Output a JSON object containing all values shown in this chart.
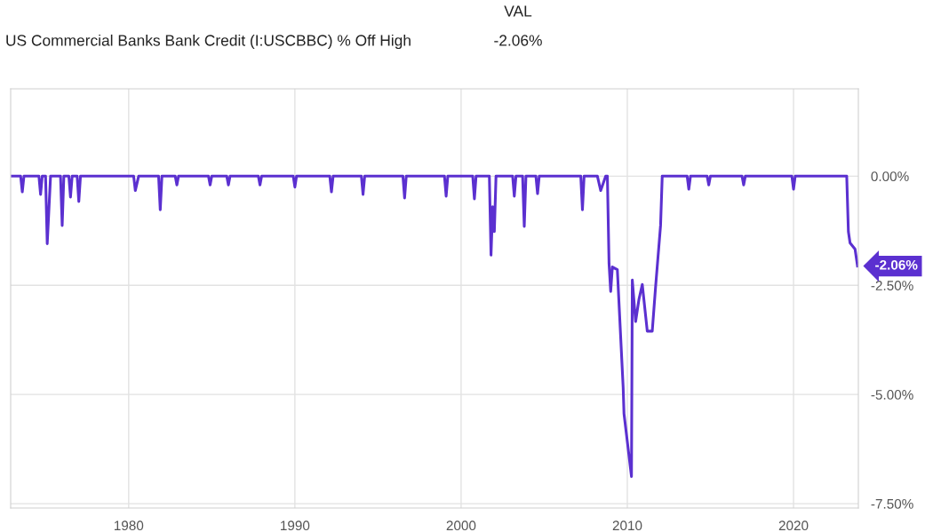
{
  "chart_data": {
    "type": "line",
    "title": "US Commercial Banks Bank Credit (I:USCBBC) % Off High",
    "annotations": [
      "VAL",
      "-2.06%",
      {
        "text": "-2.06%",
        "x": 2023.85,
        "y": -2.06
      }
    ],
    "series": [
      {
        "color": "#5b30d0",
        "x": [
          1972.9,
          1973.5,
          1973.6,
          1973.7,
          1974.6,
          1974.7,
          1974.8,
          1975.0,
          1975.1,
          1975.3,
          1975.9,
          1976.0,
          1976.1,
          1976.4,
          1976.5,
          1976.6,
          1976.9,
          1977.0,
          1977.1,
          1980.3,
          1980.4,
          1980.6,
          1981.8,
          1981.9,
          1982.0,
          1982.8,
          1982.9,
          1983.0,
          1984.8,
          1984.9,
          1985.0,
          1985.9,
          1986.0,
          1986.1,
          1987.8,
          1987.9,
          1988.0,
          1989.9,
          1990.0,
          1990.1,
          1992.1,
          1992.2,
          1992.3,
          1994.0,
          1994.1,
          1994.2,
          1996.5,
          1996.6,
          1996.7,
          1999.0,
          1999.1,
          1999.2,
          2000.7,
          2000.8,
          2000.9,
          2001.7,
          2001.8,
          2001.9,
          2002.0,
          2002.1,
          2002.3,
          2003.1,
          2003.2,
          2003.3,
          2003.7,
          2003.8,
          2003.9,
          2004.5,
          2004.6,
          2004.7,
          2007.2,
          2007.3,
          2007.4,
          2008.2,
          2008.4,
          2008.7,
          2008.8,
          2008.9,
          2009.0,
          2009.1,
          2009.4,
          2009.75,
          2009.8,
          2010.25,
          2010.3,
          2010.5,
          2010.7,
          2010.9,
          2011.2,
          2011.5,
          2011.7,
          2012.0,
          2012.1,
          2013.6,
          2013.7,
          2013.8,
          2014.8,
          2014.9,
          2015.0,
          2016.9,
          2017.0,
          2017.1,
          2019.9,
          2020.0,
          2020.1,
          2023.2,
          2023.3,
          2023.4,
          2023.7,
          2023.85
        ],
        "values": [
          0,
          0,
          -0.36,
          0,
          0,
          -0.42,
          0,
          0,
          -1.55,
          0,
          0,
          -1.13,
          0,
          0,
          -0.48,
          0,
          0,
          -0.58,
          0,
          0,
          -0.33,
          0,
          0,
          -0.77,
          0,
          0,
          -0.2,
          0,
          0,
          -0.2,
          0,
          0,
          -0.2,
          0,
          0,
          -0.2,
          0,
          0,
          -0.25,
          0,
          0,
          -0.36,
          0,
          0,
          -0.42,
          0,
          0,
          -0.5,
          0,
          0,
          -0.46,
          0,
          0,
          -0.52,
          0,
          0,
          -1.81,
          -0.7,
          -1.27,
          0,
          0,
          0,
          -0.46,
          0,
          0,
          -1.15,
          0,
          0,
          -0.4,
          0,
          0,
          -0.77,
          0,
          0,
          -0.33,
          0,
          0,
          -2.0,
          -2.64,
          -2.08,
          -2.14,
          -4.84,
          -5.44,
          -6.88,
          -2.38,
          -3.33,
          -2.82,
          -2.48,
          -3.55,
          -3.55,
          -2.54,
          -1.13,
          0,
          0,
          -0.3,
          0,
          0,
          -0.2,
          0,
          0,
          -0.2,
          0,
          0,
          -0.3,
          0,
          0,
          -1.27,
          -1.53,
          -1.67,
          -2.06
        ]
      }
    ],
    "xlim": [
      1972.9,
      2023.9
    ],
    "xticks": [
      1980,
      1990,
      2000,
      2010,
      2020
    ],
    "ylim": [
      -7.6,
      2
    ],
    "yticks": [
      {
        "value": 0,
        "label": "0.00%"
      },
      {
        "value": -2.5,
        "label": "-2.50%"
      },
      {
        "value": -5,
        "label": "-5.00%"
      },
      {
        "value": -7.5,
        "label": "-7.50%"
      }
    ],
    "grid": true,
    "marker": "none",
    "line_style": "solid"
  }
}
